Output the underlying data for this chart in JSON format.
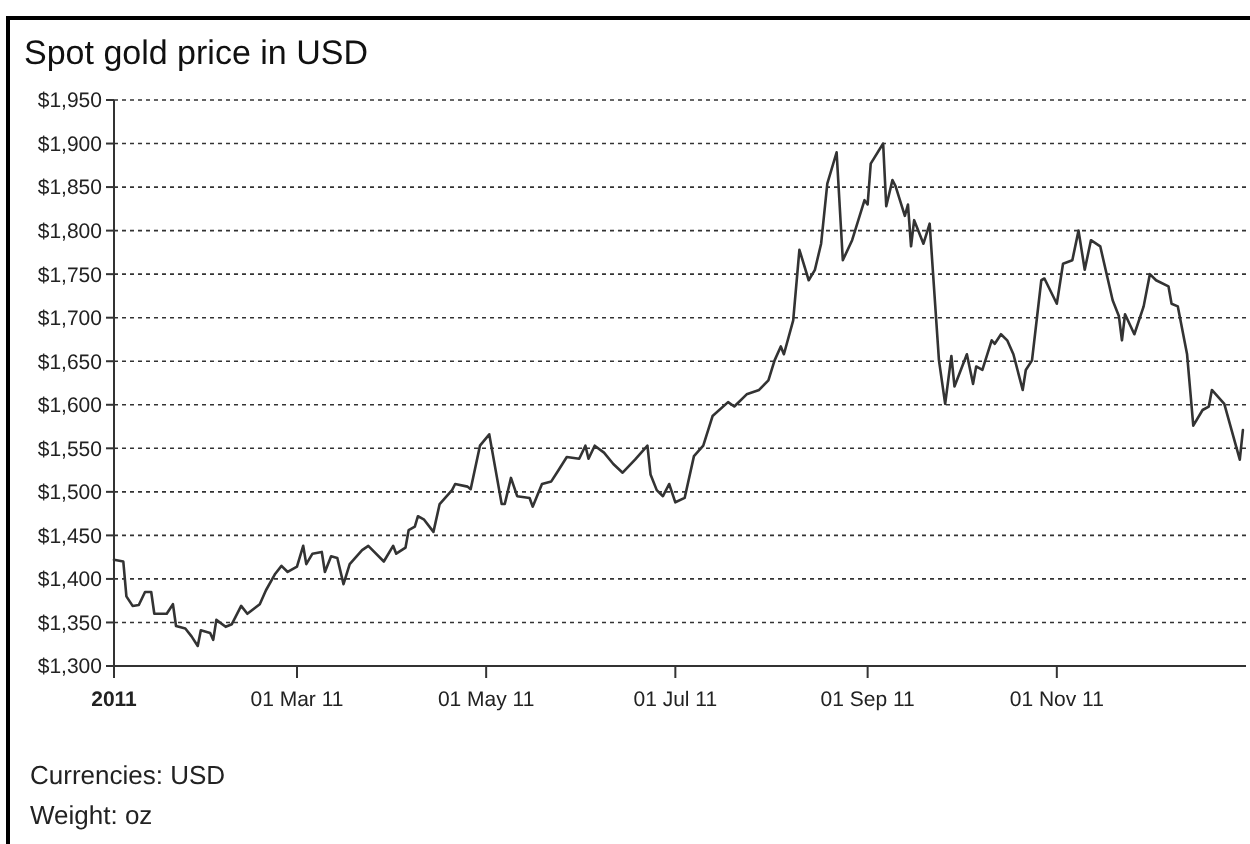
{
  "chart_data": {
    "type": "line",
    "title": "Spot gold price in USD",
    "annotations": [
      "Currencies:  USD",
      "Weight: oz"
    ],
    "xlim": [
      "2011-01-01",
      "2012-01-01"
    ],
    "xticks": [
      {
        "value": "2011-01-01",
        "label": "2011"
      },
      {
        "value": "2011-03-01",
        "label": "01 Mar 11"
      },
      {
        "value": "2011-05-01",
        "label": "01 May 11"
      },
      {
        "value": "2011-07-01",
        "label": "01 Jul 11"
      },
      {
        "value": "2011-09-01",
        "label": "01 Sep 11"
      },
      {
        "value": "2011-11-01",
        "label": "01 Nov 11"
      }
    ],
    "ylim": [
      1300,
      1950
    ],
    "yticks": [
      {
        "value": 1300,
        "label": "$1,300"
      },
      {
        "value": 1350,
        "label": "$1,350"
      },
      {
        "value": 1400,
        "label": "$1,400"
      },
      {
        "value": 1450,
        "label": "$1,450"
      },
      {
        "value": 1500,
        "label": "$1,500"
      },
      {
        "value": 1550,
        "label": "$1,550"
      },
      {
        "value": 1600,
        "label": "$1,600"
      },
      {
        "value": 1650,
        "label": "$1,650"
      },
      {
        "value": 1700,
        "label": "$1,700"
      },
      {
        "value": 1750,
        "label": "$1,750"
      },
      {
        "value": 1800,
        "label": "$1,800"
      },
      {
        "value": 1850,
        "label": "$1,850"
      },
      {
        "value": 1900,
        "label": "$1,900"
      },
      {
        "value": 1950,
        "label": "$1,950"
      }
    ],
    "grid": "y",
    "marker": "none",
    "line_style": "solid",
    "x": [
      "2011-01-01",
      "2011-01-04",
      "2011-01-05",
      "2011-01-07",
      "2011-01-09",
      "2011-01-11",
      "2011-01-13",
      "2011-01-14",
      "2011-01-18",
      "2011-01-20",
      "2011-01-21",
      "2011-01-24",
      "2011-01-26",
      "2011-01-28",
      "2011-01-29",
      "2011-02-01",
      "2011-02-02",
      "2011-02-03",
      "2011-02-06",
      "2011-02-08",
      "2011-02-11",
      "2011-02-13",
      "2011-02-17",
      "2011-02-19",
      "2011-02-22",
      "2011-02-24",
      "2011-02-26",
      "2011-03-01",
      "2011-03-03",
      "2011-03-04",
      "2011-03-06",
      "2011-03-09",
      "2011-03-10",
      "2011-03-12",
      "2011-03-14",
      "2011-03-16",
      "2011-03-18",
      "2011-03-22",
      "2011-03-24",
      "2011-03-29",
      "2011-04-01",
      "2011-04-02",
      "2011-04-05",
      "2011-04-06",
      "2011-04-08",
      "2011-04-09",
      "2011-04-11",
      "2011-04-14",
      "2011-04-16",
      "2011-04-20",
      "2011-04-21",
      "2011-04-25",
      "2011-04-26",
      "2011-04-29",
      "2011-05-02",
      "2011-05-06",
      "2011-05-07",
      "2011-05-09",
      "2011-05-11",
      "2011-05-15",
      "2011-05-16",
      "2011-05-19",
      "2011-05-22",
      "2011-05-24",
      "2011-05-27",
      "2011-05-31",
      "2011-06-02",
      "2011-06-03",
      "2011-06-05",
      "2011-06-08",
      "2011-06-11",
      "2011-06-14",
      "2011-06-18",
      "2011-06-22",
      "2011-06-23",
      "2011-06-25",
      "2011-06-27",
      "2011-06-29",
      "2011-07-01",
      "2011-07-04",
      "2011-07-07",
      "2011-07-10",
      "2011-07-13",
      "2011-07-18",
      "2011-07-20",
      "2011-07-24",
      "2011-07-28",
      "2011-07-31",
      "2011-08-02",
      "2011-08-04",
      "2011-08-05",
      "2011-08-08",
      "2011-08-10",
      "2011-08-13",
      "2011-08-15",
      "2011-08-17",
      "2011-08-19",
      "2011-08-22",
      "2011-08-24",
      "2011-08-27",
      "2011-08-31",
      "2011-09-01",
      "2011-09-02",
      "2011-09-06",
      "2011-09-07",
      "2011-09-09",
      "2011-09-10",
      "2011-09-13",
      "2011-09-14",
      "2011-09-15",
      "2011-09-16",
      "2011-09-19",
      "2011-09-21",
      "2011-09-24",
      "2011-09-26",
      "2011-09-28",
      "2011-09-29",
      "2011-10-03",
      "2011-10-05",
      "2011-10-06",
      "2011-10-08",
      "2011-10-11",
      "2011-10-12",
      "2011-10-14",
      "2011-10-16",
      "2011-10-18",
      "2011-10-21",
      "2011-10-22",
      "2011-10-24",
      "2011-10-27",
      "2011-10-28",
      "2011-11-01",
      "2011-11-03",
      "2011-11-06",
      "2011-11-08",
      "2011-11-10",
      "2011-11-12",
      "2011-11-15",
      "2011-11-19",
      "2011-11-21",
      "2011-11-22",
      "2011-11-23",
      "2011-11-26",
      "2011-11-29",
      "2011-12-01",
      "2011-12-03",
      "2011-12-07",
      "2011-12-08",
      "2011-12-10",
      "2011-12-13",
      "2011-12-15",
      "2011-12-18",
      "2011-12-20",
      "2011-12-21",
      "2011-12-25",
      "2011-12-30",
      "2011-12-31"
    ],
    "series": [
      {
        "color": "#333333",
        "values": [
          1422,
          1420,
          1380,
          1369,
          1370,
          1385,
          1385,
          1360,
          1360,
          1371,
          1346,
          1343,
          1334,
          1323,
          1341,
          1338,
          1330,
          1353,
          1345,
          1348,
          1369,
          1360,
          1371,
          1387,
          1406,
          1415,
          1408,
          1414,
          1438,
          1417,
          1429,
          1431,
          1408,
          1426,
          1424,
          1394,
          1417,
          1433,
          1438,
          1420,
          1438,
          1429,
          1436,
          1456,
          1460,
          1472,
          1468,
          1454,
          1486,
          1502,
          1509,
          1506,
          1503,
          1553,
          1566,
          1486,
          1486,
          1516,
          1495,
          1493,
          1483,
          1509,
          1512,
          1523,
          1540,
          1538,
          1553,
          1538,
          1553,
          1545,
          1532,
          1522,
          1537,
          1553,
          1520,
          1502,
          1495,
          1509,
          1488,
          1493,
          1541,
          1553,
          1587,
          1603,
          1598,
          1612,
          1617,
          1628,
          1651,
          1667,
          1658,
          1697,
          1778,
          1743,
          1755,
          1785,
          1854,
          1890,
          1766,
          1789,
          1835,
          1830,
          1877,
          1900,
          1828,
          1858,
          1851,
          1817,
          1830,
          1782,
          1812,
          1785,
          1808,
          1651,
          1601,
          1656,
          1621,
          1658,
          1624,
          1644,
          1640,
          1674,
          1670,
          1681,
          1674,
          1658,
          1617,
          1640,
          1651,
          1743,
          1745,
          1716,
          1762,
          1766,
          1800,
          1755,
          1789,
          1782,
          1720,
          1702,
          1674,
          1704,
          1681,
          1713,
          1750,
          1743,
          1736,
          1716,
          1713,
          1658,
          1576,
          1594,
          1598,
          1617,
          1601,
          1537,
          1571
        ]
      }
    ]
  }
}
